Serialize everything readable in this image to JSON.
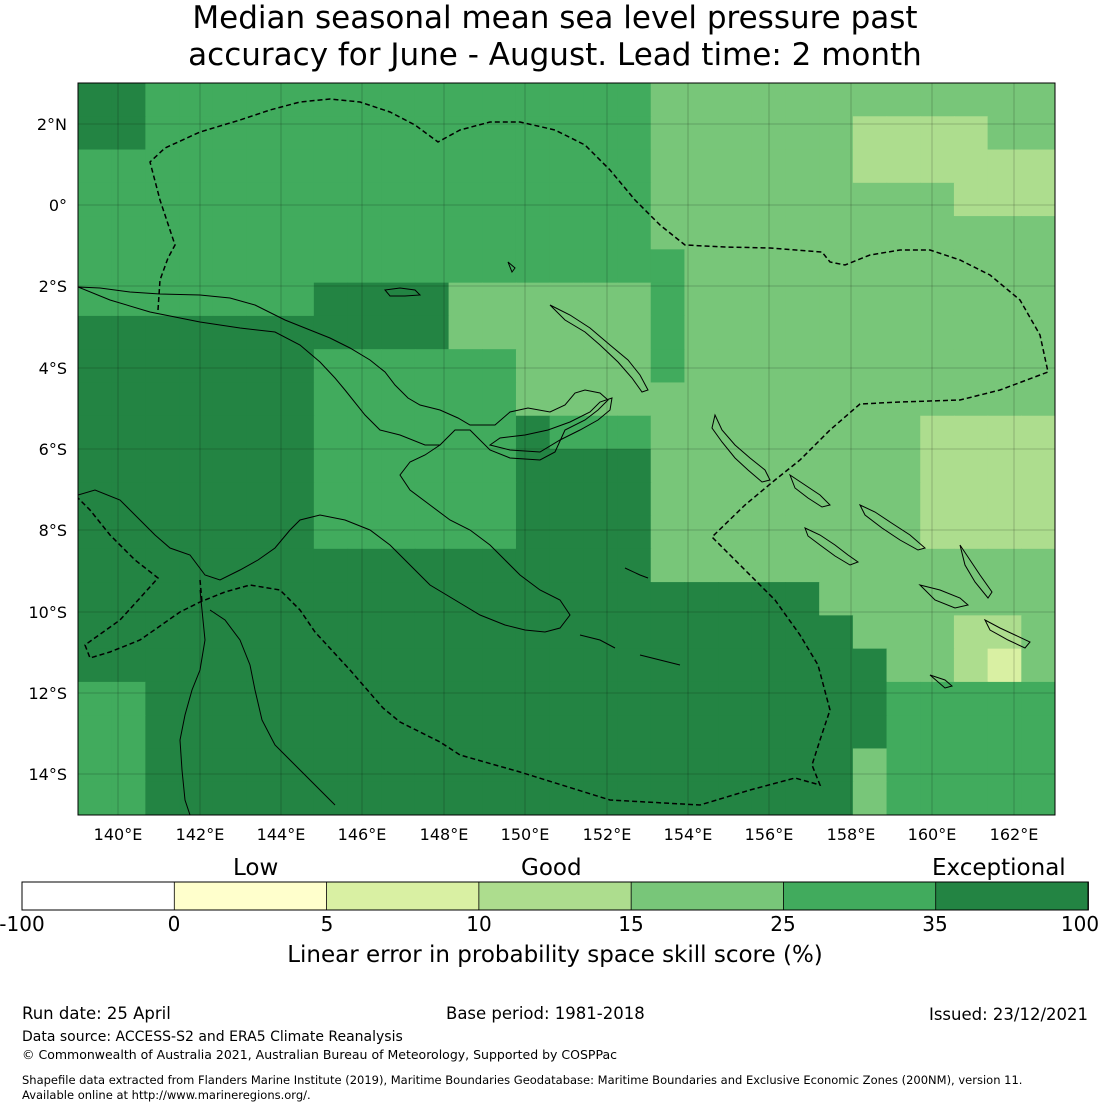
{
  "title": {
    "line1": "Median seasonal mean sea level pressure past",
    "line2": "accuracy for June - August. Lead time: 2 month"
  },
  "map": {
    "lon_labels": [
      "140°E",
      "142°E",
      "144°E",
      "146°E",
      "148°E",
      "150°E",
      "152°E",
      "154°E",
      "156°E",
      "158°E",
      "160°E",
      "162°E"
    ],
    "lat_labels": [
      "2°N",
      "0°",
      "2°S",
      "4°S",
      "6°S",
      "8°S",
      "10°S",
      "12°S",
      "14°S"
    ],
    "extent": {
      "lon_min": 139.0,
      "lon_max": 163.0,
      "lat_min": -15.0,
      "lat_max": 3.0
    },
    "gridlines": true,
    "cell_size_deg": 0.83,
    "colors": {
      "exceptional": "#238443",
      "c25_35": "#41ab5d",
      "c15_25": "#78c679",
      "c10_15": "#addd8e",
      "c5_10": "#d9f0a3",
      "c0_5": "#ffffcc",
      "neg": "#ffffff"
    }
  },
  "colorbar": {
    "qualitative": [
      "Low",
      "Good",
      "Exceptional"
    ],
    "ticks": [
      "-100",
      "0",
      "5",
      "10",
      "15",
      "25",
      "35",
      "100"
    ],
    "colors": [
      "#ffffff",
      "#ffffcc",
      "#d9f0a3",
      "#addd8e",
      "#78c679",
      "#41ab5d",
      "#238443"
    ],
    "title": "Linear error in probability space skill score (%)"
  },
  "footer": {
    "run_date": "Run date: 25 April",
    "base_period": "Base period: 1981-2018",
    "issued": "Issued: 23/12/2021",
    "data_source": "Data source: ACCESS-S2 and ERA5 Climate Reanalysis",
    "copyright": "© Commonwealth of Australia 2021, Australian Bureau of Meteorology, Supported by COSPPac",
    "shapefile_line1": "Shapefile data extracted from Flanders Marine Institute (2019), Maritime Boundaries Geodatabase: Maritime Boundaries and Exclusive Economic Zones (200NM), version 11.",
    "shapefile_line2": "Available online at http://www.marineregions.org/."
  }
}
